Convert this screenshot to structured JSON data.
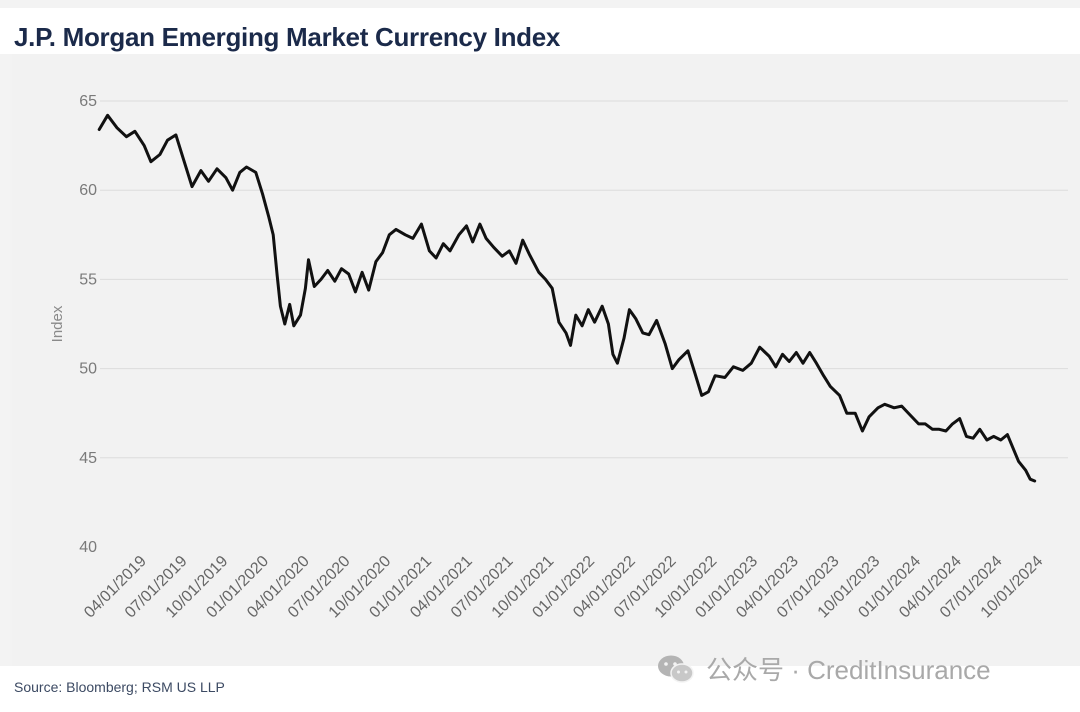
{
  "title": "J.P. Morgan Emerging Market Currency Index",
  "source": "Source: Bloomberg; RSM US LLP",
  "watermark": {
    "icon": "wechat-icon",
    "text": "公众号 · CreditInsurance"
  },
  "colors": {
    "line": "#111111",
    "grid": "#dcdcdc",
    "title": "#1b2a4a"
  },
  "chart_data": {
    "type": "line",
    "title": "J.P. Morgan Emerging Market Currency Index",
    "xlabel": "",
    "ylabel": "Index",
    "ylim": [
      40,
      65
    ],
    "yticks": [
      40,
      45,
      50,
      55,
      60,
      65
    ],
    "grid": "horizontal",
    "xticks": [
      "04/01/2019",
      "07/01/2019",
      "10/01/2019",
      "01/01/2020",
      "04/01/2020",
      "07/01/2020",
      "10/01/2020",
      "01/01/2021",
      "04/01/2021",
      "07/01/2021",
      "10/01/2021",
      "01/01/2022",
      "04/01/2022",
      "07/01/2022",
      "10/01/2022",
      "01/01/2023",
      "04/01/2023",
      "07/01/2023",
      "10/01/2023",
      "01/01/2024",
      "04/01/2024",
      "07/01/2024",
      "10/01/2024"
    ],
    "series": [
      {
        "values": [
          {
            "x": "2019-03-01",
            "y": 63.4
          },
          {
            "x": "2019-03-20",
            "y": 64.2
          },
          {
            "x": "2019-04-10",
            "y": 63.5
          },
          {
            "x": "2019-05-01",
            "y": 63.0
          },
          {
            "x": "2019-05-20",
            "y": 63.3
          },
          {
            "x": "2019-06-10",
            "y": 62.5
          },
          {
            "x": "2019-06-25",
            "y": 61.6
          },
          {
            "x": "2019-07-15",
            "y": 62.0
          },
          {
            "x": "2019-08-01",
            "y": 62.8
          },
          {
            "x": "2019-08-20",
            "y": 63.1
          },
          {
            "x": "2019-09-05",
            "y": 61.8
          },
          {
            "x": "2019-09-25",
            "y": 60.2
          },
          {
            "x": "2019-10-15",
            "y": 61.1
          },
          {
            "x": "2019-11-01",
            "y": 60.5
          },
          {
            "x": "2019-11-20",
            "y": 61.2
          },
          {
            "x": "2019-12-10",
            "y": 60.7
          },
          {
            "x": "2019-12-25",
            "y": 60.0
          },
          {
            "x": "2020-01-10",
            "y": 61.0
          },
          {
            "x": "2020-01-25",
            "y": 61.3
          },
          {
            "x": "2020-02-15",
            "y": 61.0
          },
          {
            "x": "2020-03-01",
            "y": 59.8
          },
          {
            "x": "2020-03-15",
            "y": 58.5
          },
          {
            "x": "2020-03-25",
            "y": 57.5
          },
          {
            "x": "2020-04-03",
            "y": 55.2
          },
          {
            "x": "2020-04-10",
            "y": 53.5
          },
          {
            "x": "2020-04-20",
            "y": 52.5
          },
          {
            "x": "2020-05-01",
            "y": 53.6
          },
          {
            "x": "2020-05-10",
            "y": 52.4
          },
          {
            "x": "2020-05-25",
            "y": 53.0
          },
          {
            "x": "2020-06-05",
            "y": 54.5
          },
          {
            "x": "2020-06-12",
            "y": 56.1
          },
          {
            "x": "2020-06-25",
            "y": 54.6
          },
          {
            "x": "2020-07-10",
            "y": 55.0
          },
          {
            "x": "2020-07-25",
            "y": 55.5
          },
          {
            "x": "2020-08-10",
            "y": 54.9
          },
          {
            "x": "2020-08-25",
            "y": 55.6
          },
          {
            "x": "2020-09-10",
            "y": 55.3
          },
          {
            "x": "2020-09-25",
            "y": 54.3
          },
          {
            "x": "2020-10-10",
            "y": 55.4
          },
          {
            "x": "2020-10-25",
            "y": 54.4
          },
          {
            "x": "2020-11-10",
            "y": 56.0
          },
          {
            "x": "2020-11-25",
            "y": 56.5
          },
          {
            "x": "2020-12-10",
            "y": 57.5
          },
          {
            "x": "2020-12-25",
            "y": 57.8
          },
          {
            "x": "2021-01-15",
            "y": 57.5
          },
          {
            "x": "2021-02-01",
            "y": 57.3
          },
          {
            "x": "2021-02-20",
            "y": 58.1
          },
          {
            "x": "2021-03-10",
            "y": 56.6
          },
          {
            "x": "2021-03-25",
            "y": 56.2
          },
          {
            "x": "2021-04-10",
            "y": 57.0
          },
          {
            "x": "2021-04-25",
            "y": 56.6
          },
          {
            "x": "2021-05-15",
            "y": 57.5
          },
          {
            "x": "2021-06-01",
            "y": 58.0
          },
          {
            "x": "2021-06-15",
            "y": 57.1
          },
          {
            "x": "2021-07-01",
            "y": 58.1
          },
          {
            "x": "2021-07-15",
            "y": 57.3
          },
          {
            "x": "2021-08-01",
            "y": 56.8
          },
          {
            "x": "2021-08-20",
            "y": 56.3
          },
          {
            "x": "2021-09-05",
            "y": 56.6
          },
          {
            "x": "2021-09-20",
            "y": 55.9
          },
          {
            "x": "2021-10-05",
            "y": 57.2
          },
          {
            "x": "2021-10-20",
            "y": 56.4
          },
          {
            "x": "2021-11-10",
            "y": 55.4
          },
          {
            "x": "2021-11-25",
            "y": 55.0
          },
          {
            "x": "2021-12-10",
            "y": 54.5
          },
          {
            "x": "2021-12-25",
            "y": 52.6
          },
          {
            "x": "2022-01-10",
            "y": 52.0
          },
          {
            "x": "2022-01-20",
            "y": 51.3
          },
          {
            "x": "2022-02-01",
            "y": 53.0
          },
          {
            "x": "2022-02-15",
            "y": 52.4
          },
          {
            "x": "2022-03-01",
            "y": 53.3
          },
          {
            "x": "2022-03-15",
            "y": 52.6
          },
          {
            "x": "2022-04-01",
            "y": 53.5
          },
          {
            "x": "2022-04-15",
            "y": 52.5
          },
          {
            "x": "2022-04-25",
            "y": 50.8
          },
          {
            "x": "2022-05-05",
            "y": 50.3
          },
          {
            "x": "2022-05-20",
            "y": 51.7
          },
          {
            "x": "2022-06-01",
            "y": 53.3
          },
          {
            "x": "2022-06-15",
            "y": 52.8
          },
          {
            "x": "2022-07-01",
            "y": 52.0
          },
          {
            "x": "2022-07-15",
            "y": 51.9
          },
          {
            "x": "2022-08-01",
            "y": 52.7
          },
          {
            "x": "2022-08-20",
            "y": 51.4
          },
          {
            "x": "2022-09-05",
            "y": 50.0
          },
          {
            "x": "2022-09-20",
            "y": 50.5
          },
          {
            "x": "2022-10-10",
            "y": 51.0
          },
          {
            "x": "2022-10-25",
            "y": 49.8
          },
          {
            "x": "2022-11-10",
            "y": 48.5
          },
          {
            "x": "2022-11-25",
            "y": 48.7
          },
          {
            "x": "2022-12-10",
            "y": 49.6
          },
          {
            "x": "2023-01-01",
            "y": 49.5
          },
          {
            "x": "2023-01-20",
            "y": 50.1
          },
          {
            "x": "2023-02-10",
            "y": 49.9
          },
          {
            "x": "2023-03-01",
            "y": 50.3
          },
          {
            "x": "2023-03-20",
            "y": 51.2
          },
          {
            "x": "2023-04-10",
            "y": 50.7
          },
          {
            "x": "2023-04-25",
            "y": 50.1
          },
          {
            "x": "2023-05-10",
            "y": 50.8
          },
          {
            "x": "2023-05-25",
            "y": 50.4
          },
          {
            "x": "2023-06-10",
            "y": 50.9
          },
          {
            "x": "2023-06-25",
            "y": 50.3
          },
          {
            "x": "2023-07-10",
            "y": 50.9
          },
          {
            "x": "2023-07-25",
            "y": 50.3
          },
          {
            "x": "2023-08-10",
            "y": 49.6
          },
          {
            "x": "2023-08-25",
            "y": 49.0
          },
          {
            "x": "2023-09-15",
            "y": 48.5
          },
          {
            "x": "2023-10-01",
            "y": 47.5
          },
          {
            "x": "2023-10-20",
            "y": 47.5
          },
          {
            "x": "2023-11-05",
            "y": 46.5
          },
          {
            "x": "2023-11-20",
            "y": 47.3
          },
          {
            "x": "2023-12-10",
            "y": 47.8
          },
          {
            "x": "2023-12-25",
            "y": 48.0
          },
          {
            "x": "2024-01-15",
            "y": 47.8
          },
          {
            "x": "2024-02-01",
            "y": 47.9
          },
          {
            "x": "2024-02-20",
            "y": 47.4
          },
          {
            "x": "2024-03-10",
            "y": 46.9
          },
          {
            "x": "2024-03-25",
            "y": 46.9
          },
          {
            "x": "2024-04-10",
            "y": 46.6
          },
          {
            "x": "2024-04-25",
            "y": 46.6
          },
          {
            "x": "2024-05-10",
            "y": 46.5
          },
          {
            "x": "2024-05-25",
            "y": 46.9
          },
          {
            "x": "2024-06-10",
            "y": 47.2
          },
          {
            "x": "2024-06-25",
            "y": 46.2
          },
          {
            "x": "2024-07-10",
            "y": 46.1
          },
          {
            "x": "2024-07-25",
            "y": 46.6
          },
          {
            "x": "2024-08-10",
            "y": 46.0
          },
          {
            "x": "2024-08-25",
            "y": 46.2
          },
          {
            "x": "2024-09-10",
            "y": 46.0
          },
          {
            "x": "2024-09-25",
            "y": 46.3
          },
          {
            "x": "2024-10-10",
            "y": 45.4
          },
          {
            "x": "2024-10-20",
            "y": 44.8
          },
          {
            "x": "2024-11-05",
            "y": 44.3
          },
          {
            "x": "2024-11-15",
            "y": 43.8
          },
          {
            "x": "2024-11-25",
            "y": 43.7
          }
        ]
      }
    ]
  }
}
